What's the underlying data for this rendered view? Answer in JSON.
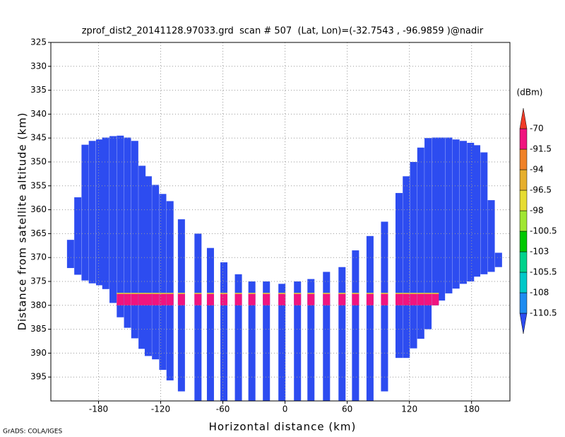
{
  "chart_data": {
    "type": "profile",
    "title": "zprof_dist2_20141128.97033.grd  scan # 507  (Lat, Lon)=(-32.7543 , -96.9859 )@nadir",
    "x_label": "Horizontal distance (km)",
    "y_label": "Distance from satellite altitude (km)",
    "footer": "GrADS: COLA/IGES",
    "xlim": [
      -226,
      217
    ],
    "xticks": [
      -180,
      -120,
      -60,
      0,
      60,
      120,
      180
    ],
    "ylim": [
      325,
      400
    ],
    "yticks": [
      325,
      330,
      335,
      340,
      345,
      350,
      355,
      360,
      365,
      370,
      375,
      380,
      385,
      390,
      395
    ],
    "y_inverted": true,
    "grid": true,
    "field_color": "#2d4cf0",
    "columns": {
      "x": [
        -207,
        -200,
        -193,
        -186,
        -179,
        -173,
        -166,
        -159,
        -152,
        -145,
        -138,
        -132,
        -125,
        -118,
        -111,
        -100,
        -84,
        -72,
        -59,
        -45,
        -32,
        -18,
        -3,
        12,
        25,
        40,
        55,
        68,
        82,
        96,
        110,
        117,
        124,
        131,
        138,
        145,
        151,
        158,
        165,
        172,
        179,
        185,
        192,
        199,
        206
      ],
      "top": [
        366.3,
        357.4,
        346.4,
        345.6,
        345.3,
        344.9,
        344.6,
        344.5,
        344.9,
        345.6,
        350.8,
        353,
        354.8,
        356.7,
        358.2,
        362,
        365,
        368,
        371,
        373.5,
        375,
        375,
        375.5,
        375,
        374.5,
        373,
        372,
        368.5,
        365.5,
        362.5,
        356.5,
        353,
        350,
        347,
        345,
        344.9,
        344.9,
        344.9,
        345.3,
        345.6,
        346,
        346.5,
        348,
        358,
        369
      ],
      "bottom": [
        372.2,
        373.6,
        374.8,
        375.4,
        375.8,
        376.6,
        379.5,
        382.5,
        384.7,
        386.9,
        389.1,
        390.6,
        391.3,
        393.5,
        395.7,
        398,
        400,
        400,
        400,
        400,
        400,
        400,
        400,
        400,
        400,
        400,
        400,
        400,
        400,
        398,
        391,
        391,
        389,
        387,
        385,
        380,
        379,
        377.5,
        376.5,
        375.5,
        375,
        374,
        373.5,
        373,
        372
      ]
    },
    "bright_band": {
      "top": 377.5,
      "bottom": 380,
      "color": "#f0147f"
    },
    "colorbar": {
      "title": "(dBm)",
      "levels": [
        -110.5,
        -108,
        -105.5,
        -103,
        -100.5,
        -98,
        -96.5,
        -94,
        -91.5,
        -70
      ],
      "colors": [
        "#2d4cf0",
        "#1e8cf0",
        "#00c8c8",
        "#00d28c",
        "#00c800",
        "#a0e632",
        "#e6dc32",
        "#e6af2d",
        "#f08228",
        "#f0147f",
        "#f03c28"
      ]
    }
  }
}
